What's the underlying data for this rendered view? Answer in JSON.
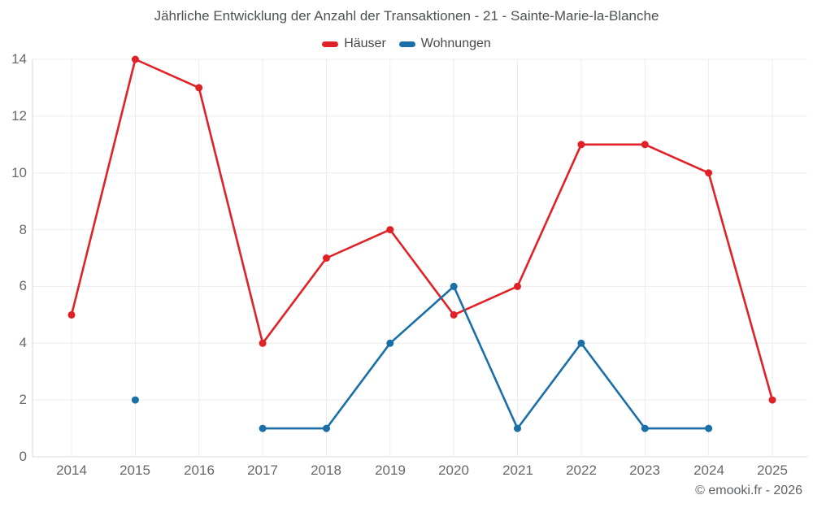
{
  "chart_data": {
    "type": "line",
    "title": "Jährliche Entwicklung der Anzahl der Transaktionen - 21 - Sainte-Marie-la-Blanche",
    "categories": [
      "2014",
      "2015",
      "2016",
      "2017",
      "2018",
      "2019",
      "2020",
      "2021",
      "2022",
      "2023",
      "2024",
      "2025"
    ],
    "series": [
      {
        "id": "hauser",
        "name": "Häuser",
        "color": "#e02227",
        "values": [
          5,
          14,
          13,
          4,
          7,
          8,
          5,
          6,
          11,
          11,
          10,
          2
        ]
      },
      {
        "id": "wohnungen",
        "name": "Wohnungen",
        "color": "#1b6fa8",
        "values": [
          null,
          2,
          null,
          1,
          1,
          4,
          6,
          1,
          4,
          1,
          1,
          null
        ]
      }
    ],
    "ylim": [
      0,
      14
    ],
    "yticks": [
      0,
      2,
      4,
      6,
      8,
      10,
      12,
      14
    ],
    "grid": true,
    "legend_position": "top",
    "xlabel": "",
    "ylabel": ""
  },
  "footer": {
    "copyright": "© emooki.fr - 2026"
  },
  "colors": {
    "grid": "#ededed",
    "axis": "#d8d8d8",
    "background": "#ffffff"
  }
}
